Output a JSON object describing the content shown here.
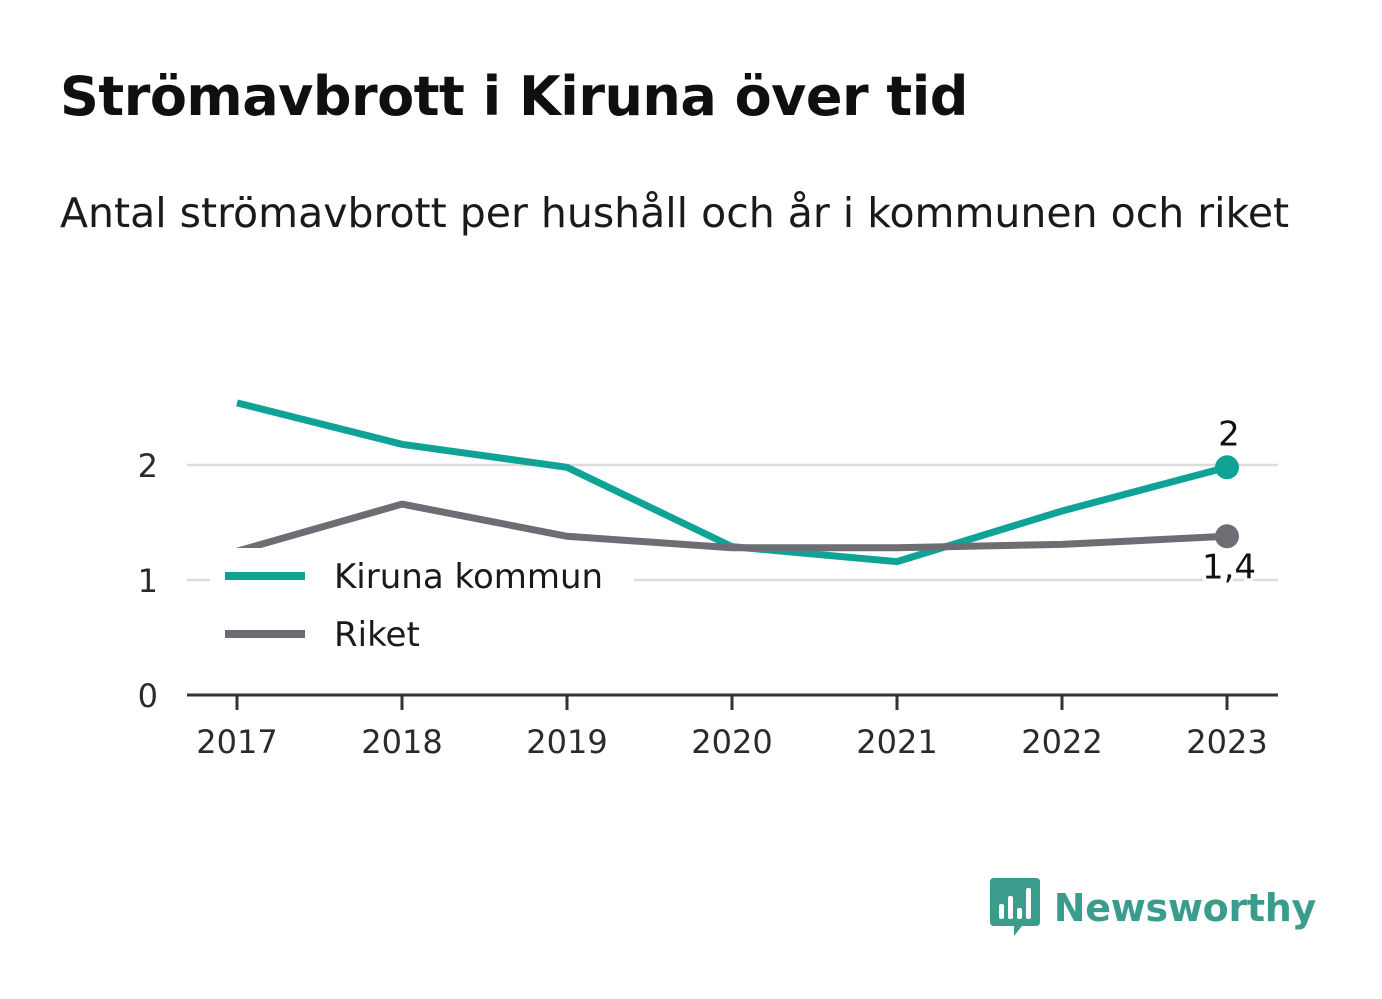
{
  "title": "Strömavbrott i Kiruna över tid",
  "subtitle": "Antal strömavbrott per hushåll och år i kommunen och riket",
  "brand": {
    "name": "Newsworthy",
    "color": "#3a9c8d"
  },
  "chart_data": {
    "type": "line",
    "x": [
      "2017",
      "2018",
      "2019",
      "2020",
      "2021",
      "2022",
      "2023"
    ],
    "ylim": [
      0,
      2.5
    ],
    "yticks": [
      "0",
      "1",
      "2"
    ],
    "grid": true,
    "legend_position": "bottom-left",
    "series": [
      {
        "name": "Kiruna kommun",
        "color": "#0fa396",
        "values": [
          2.54,
          2.18,
          1.98,
          1.29,
          1.16,
          1.6,
          1.98
        ],
        "end_label": "2"
      },
      {
        "name": "Riket",
        "color": "#6e6d74",
        "values": [
          1.25,
          1.66,
          1.38,
          1.28,
          1.28,
          1.31,
          1.38
        ],
        "end_label": "1,4"
      }
    ]
  }
}
